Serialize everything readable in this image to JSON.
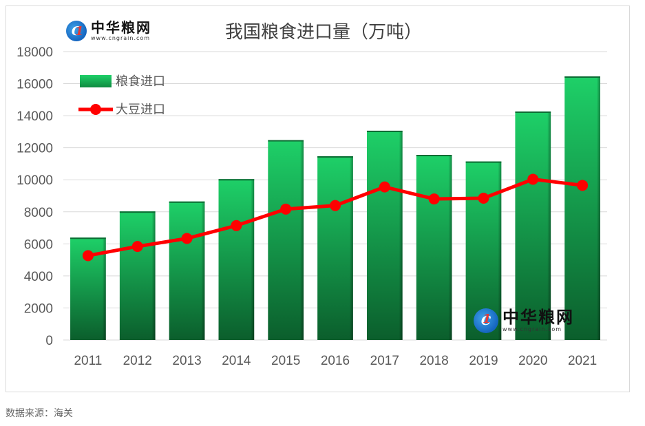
{
  "logo": {
    "name": "中华粮网",
    "url": "www.cngrain.com"
  },
  "source_note": "数据来源：海关",
  "colors": {
    "bar_top": "#1ed068",
    "bar_bottom": "#0b5e2c",
    "line": "#ff0000",
    "grid": "#d9d9d9",
    "axis_text": "#595959",
    "title": "#404040"
  },
  "chart_data": {
    "type": "bar",
    "title": "我国粮食进口量（万吨）",
    "xlabel": "",
    "ylabel": "",
    "categories": [
      "2011",
      "2012",
      "2013",
      "2014",
      "2015",
      "2016",
      "2017",
      "2018",
      "2019",
      "2020",
      "2021"
    ],
    "ylim": [
      0,
      18000
    ],
    "yticks": [
      "0",
      "2000",
      "4000",
      "6000",
      "8000",
      "10000",
      "12000",
      "14000",
      "16000",
      "18000"
    ],
    "grid": true,
    "legend_position": "top-left",
    "series": [
      {
        "name": "粮食进口",
        "type": "bar",
        "values": [
          6390,
          8025,
          8645,
          10042,
          12477,
          11468,
          13062,
          11555,
          11144,
          14262,
          16454
        ]
      },
      {
        "name": "大豆进口",
        "type": "line",
        "values": [
          5264,
          5838,
          6338,
          7140,
          8169,
          8391,
          9553,
          8803,
          8851,
          10033,
          9652
        ]
      }
    ]
  }
}
